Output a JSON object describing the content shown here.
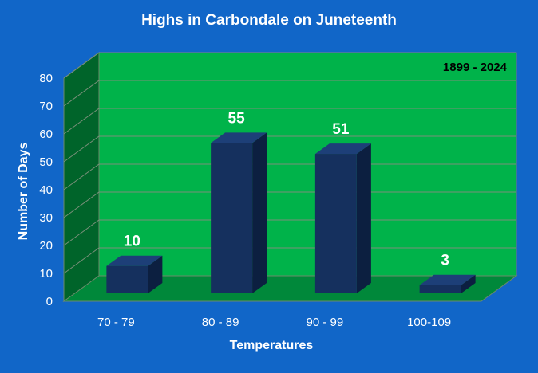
{
  "colors": {
    "background": "#1166c8",
    "wall": "#00b34a",
    "side_wall": "#00642a",
    "floor": "#00883a",
    "bar_front": "#15305e",
    "bar_top": "#1d3f78",
    "bar_side": "#0c1f40",
    "label_text": "#ffffff",
    "annotation_text": "#000000"
  },
  "chart_data": {
    "type": "bar",
    "title": "Highs in Carbondale on Juneteenth",
    "annotation": "1899 - 2024",
    "xlabel": "Temperatures",
    "ylabel": "Number of Days",
    "categories": [
      "70 - 79",
      "80 - 89",
      "90 - 99",
      "100-109"
    ],
    "values": [
      10,
      55,
      51,
      3
    ],
    "data_labels": [
      "10",
      "55",
      "51",
      "3"
    ],
    "ylim": [
      0,
      80
    ],
    "yticks": [
      "0",
      "10",
      "20",
      "30",
      "40",
      "50",
      "60",
      "70",
      "80"
    ],
    "grid": true,
    "style": "3d"
  }
}
